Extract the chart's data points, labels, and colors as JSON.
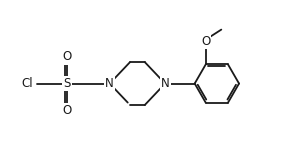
{
  "background_color": "#ffffff",
  "line_color": "#1a1a1a",
  "line_width": 1.3,
  "font_size": 8.5,
  "xlim": [
    -1.8,
    6.2
  ],
  "ylim": [
    -1.4,
    1.7
  ]
}
